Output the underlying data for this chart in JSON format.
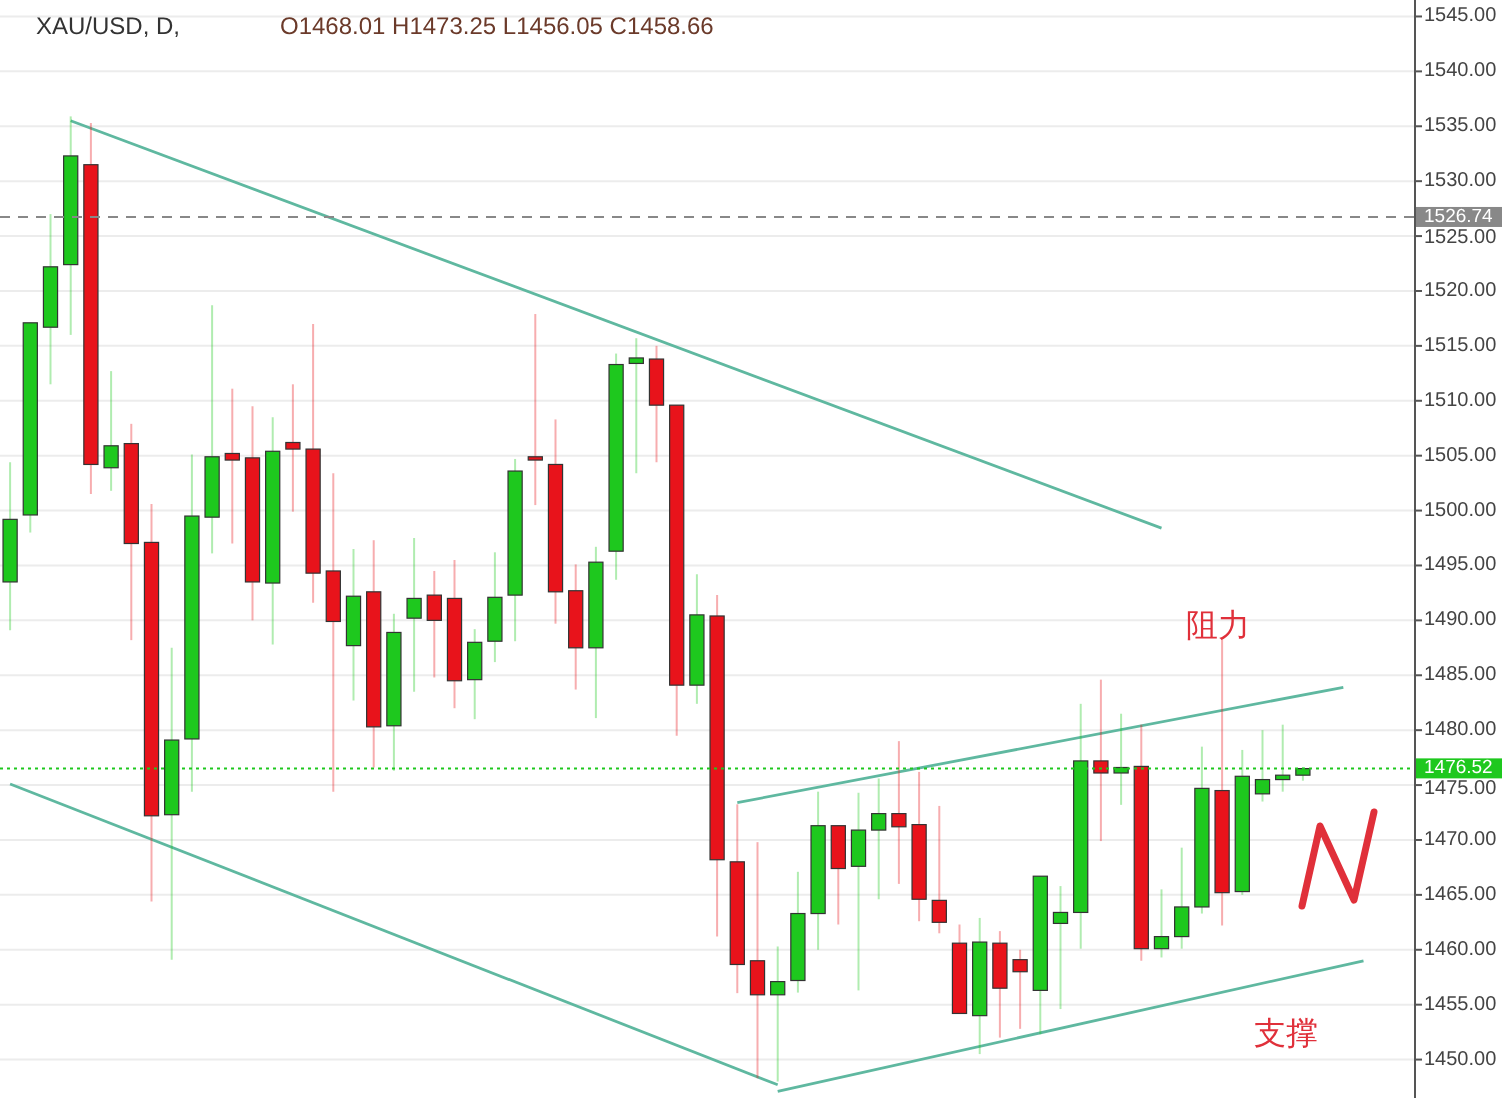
{
  "chart_data": {
    "type": "candlestick",
    "title": "XAU/USD, D,",
    "subtitle": "O1468.01 H1473.25 L1456.05 C1458.66",
    "categories": [
      null,
      null,
      null,
      null,
      null,
      null,
      null,
      null,
      null,
      null,
      null,
      null,
      null,
      null,
      null,
      null,
      null,
      null,
      null,
      null,
      null,
      null,
      null,
      null,
      null,
      null,
      null,
      null,
      null,
      null,
      null,
      null,
      null,
      null,
      null,
      null,
      null,
      null,
      null,
      null,
      null,
      null,
      null,
      null,
      null,
      null,
      null,
      null,
      null,
      null,
      null,
      null,
      null,
      null,
      null,
      null,
      null,
      null,
      null,
      null,
      null,
      null,
      null,
      null,
      null,
      null,
      null,
      null,
      null,
      null
    ],
    "ohlc": [
      [
        1493.5,
        1504.4,
        1489.1,
        1499.2
      ],
      [
        1499.6,
        1517.1,
        1498.0,
        1517.1
      ],
      [
        1516.7,
        1527.0,
        1511.5,
        1522.2
      ],
      [
        1522.4,
        1535.9,
        1516.0,
        1532.3
      ],
      [
        1531.5,
        1535.3,
        1501.5,
        1504.2
      ],
      [
        1503.9,
        1512.7,
        1501.8,
        1505.9
      ],
      [
        1506.1,
        1507.9,
        1488.2,
        1497.0
      ],
      [
        1497.1,
        1500.6,
        1464.4,
        1472.2
      ],
      [
        1472.3,
        1487.5,
        1459.1,
        1479.1
      ],
      [
        1479.2,
        1505.1,
        1474.4,
        1499.5
      ],
      [
        1499.4,
        1518.7,
        1496.1,
        1504.9
      ],
      [
        1505.2,
        1511.1,
        1497.0,
        1504.6
      ],
      [
        1504.8,
        1509.5,
        1490.0,
        1493.5
      ],
      [
        1493.4,
        1508.5,
        1487.8,
        1505.4
      ],
      [
        1506.2,
        1511.5,
        1499.9,
        1505.6
      ],
      [
        1505.6,
        1517.0,
        1491.6,
        1494.3
      ],
      [
        1494.5,
        1503.4,
        1474.4,
        1489.9
      ],
      [
        1487.7,
        1496.5,
        1482.7,
        1492.2
      ],
      [
        1492.6,
        1497.3,
        1476.6,
        1480.3
      ],
      [
        1480.4,
        1490.6,
        1476.3,
        1488.9
      ],
      [
        1490.2,
        1497.5,
        1483.5,
        1492.0
      ],
      [
        1492.3,
        1494.5,
        1484.8,
        1490.0
      ],
      [
        1492.0,
        1495.5,
        1482.0,
        1484.5
      ],
      [
        1484.6,
        1489.2,
        1481.0,
        1488.0
      ],
      [
        1488.1,
        1496.2,
        1486.2,
        1492.1
      ],
      [
        1492.3,
        1504.7,
        1488.1,
        1503.6
      ],
      [
        1504.9,
        1517.9,
        1500.5,
        1504.6
      ],
      [
        1504.2,
        1508.3,
        1489.7,
        1492.6
      ],
      [
        1492.7,
        1495.1,
        1483.7,
        1487.5
      ],
      [
        1487.5,
        1496.7,
        1481.1,
        1495.3
      ],
      [
        1496.3,
        1514.3,
        1493.7,
        1513.3
      ],
      [
        1513.4,
        1515.7,
        1503.4,
        1513.9
      ],
      [
        1513.8,
        1515.0,
        1504.4,
        1509.6
      ],
      [
        1509.6,
        1509.6,
        1479.5,
        1484.1
      ],
      [
        1484.1,
        1494.2,
        1482.4,
        1490.5
      ],
      [
        1490.4,
        1492.3,
        1461.2,
        1468.2
      ],
      [
        1468.01,
        1473.25,
        1456.05,
        1458.66
      ],
      [
        1459.0,
        1469.8,
        1448.3,
        1455.9
      ],
      [
        1455.9,
        1460.3,
        1448.0,
        1457.1
      ],
      [
        1457.2,
        1467.1,
        1456.1,
        1463.3
      ],
      [
        1463.3,
        1474.4,
        1460.0,
        1471.3
      ],
      [
        1471.3,
        1471.3,
        1462.3,
        1467.4
      ],
      [
        1467.6,
        1474.3,
        1456.3,
        1470.9
      ],
      [
        1470.9,
        1475.6,
        1464.6,
        1472.4
      ],
      [
        1472.4,
        1479.0,
        1466.0,
        1471.2
      ],
      [
        1471.4,
        1476.2,
        1462.6,
        1464.6
      ],
      [
        1464.5,
        1473.1,
        1461.5,
        1462.5
      ],
      [
        1460.6,
        1462.3,
        1454.2,
        1454.2
      ],
      [
        1454.0,
        1462.9,
        1450.5,
        1460.7
      ],
      [
        1460.6,
        1461.7,
        1452.0,
        1456.5
      ],
      [
        1459.1,
        1460.0,
        1452.8,
        1458.0
      ],
      [
        1456.3,
        1466.7,
        1452.3,
        1466.7
      ],
      [
        1462.4,
        1465.8,
        1454.6,
        1463.4
      ],
      [
        1463.4,
        1482.4,
        1460.1,
        1477.2
      ],
      [
        1477.2,
        1484.6,
        1469.9,
        1476.1
      ],
      [
        1476.1,
        1481.5,
        1473.2,
        1476.6
      ],
      [
        1476.7,
        1480.5,
        1459.0,
        1460.1
      ],
      [
        1460.1,
        1465.5,
        1459.3,
        1461.2
      ],
      [
        1461.2,
        1469.3,
        1460.1,
        1463.9
      ],
      [
        1463.9,
        1478.5,
        1463.3,
        1474.7
      ],
      [
        1474.5,
        1488.3,
        1462.2,
        1465.2
      ],
      [
        1465.3,
        1478.2,
        1465.0,
        1475.8
      ],
      [
        1474.2,
        1480.0,
        1473.5,
        1475.5
      ],
      [
        1475.5,
        1480.5,
        1474.4,
        1475.9
      ],
      [
        1475.9,
        1476.6,
        1475.4,
        1476.5
      ],
      null,
      null,
      null,
      null,
      null
    ],
    "colors": [
      "#1ec81e",
      "#1ec81e",
      "#1ec81e",
      "#1ec81e",
      "#e8131b",
      "#1ec81e",
      "#e8131b",
      "#e8131b",
      "#1ec81e",
      "#1ec81e",
      "#1ec81e",
      "#e8131b",
      "#e8131b",
      "#1ec81e",
      "#e8131b",
      "#e8131b",
      "#e8131b",
      "#1ec81e",
      "#e8131b",
      "#1ec81e",
      "#1ec81e",
      "#e8131b",
      "#e8131b",
      "#1ec81e",
      "#1ec81e",
      "#1ec81e",
      "#e8131b",
      "#e8131b",
      "#e8131b",
      "#1ec81e",
      "#1ec81e",
      "#1ec81e",
      "#e8131b",
      "#e8131b",
      "#1ec81e",
      "#e8131b",
      "#e8131b",
      "#e8131b",
      "#1ec81e",
      "#1ec81e",
      "#1ec81e",
      "#e8131b",
      "#1ec81e",
      "#1ec81e",
      "#e8131b",
      "#e8131b",
      "#e8131b",
      "#e8131b",
      "#1ec81e",
      "#e8131b",
      "#e8131b",
      "#1ec81e",
      "#1ec81e",
      "#1ec81e",
      "#e8131b",
      "#1ec81e",
      "#e8131b",
      "#1ec81e",
      "#1ec81e",
      "#1ec81e",
      "#e8131b",
      "#1ec81e",
      "#1ec81e",
      "#1ec81e",
      "#1ec81e",
      null,
      null,
      null,
      null,
      null
    ],
    "series": [
      {
        "type": "line",
        "color": "#5fb8a0",
        "values": [
          null,
          null,
          null,
          1535.5,
          null,
          null,
          null,
          null,
          null,
          null,
          null,
          null,
          null,
          null,
          null,
          null,
          null,
          null,
          null,
          null,
          null,
          null,
          null,
          null,
          null,
          null,
          null,
          null,
          null,
          null,
          null,
          null,
          null,
          null,
          null,
          null,
          null,
          null,
          null,
          null,
          null,
          null,
          null,
          null,
          null,
          null,
          null,
          null,
          null,
          null,
          null,
          null,
          null,
          null,
          null,
          null,
          null,
          1498.4,
          null,
          null,
          null,
          null,
          null,
          null,
          null,
          null,
          null,
          null,
          null,
          null
        ]
      },
      {
        "type": "line",
        "color": "#5fb8a0",
        "values": [
          1475.1,
          null,
          null,
          null,
          null,
          null,
          null,
          null,
          null,
          null,
          null,
          null,
          null,
          null,
          null,
          null,
          null,
          null,
          null,
          null,
          null,
          null,
          null,
          null,
          null,
          null,
          null,
          null,
          null,
          null,
          null,
          null,
          null,
          null,
          null,
          null,
          null,
          null,
          1447.7,
          null,
          null,
          null,
          null,
          null,
          null,
          null,
          null,
          null,
          null,
          null,
          null,
          null,
          null,
          null,
          null,
          null,
          null,
          null,
          null,
          null,
          null,
          null,
          null,
          null,
          null,
          null,
          null,
          null,
          null,
          null
        ]
      },
      {
        "type": "line",
        "color": "#5fb8a0",
        "values": [
          null,
          null,
          null,
          null,
          null,
          null,
          null,
          null,
          null,
          null,
          null,
          null,
          null,
          null,
          null,
          null,
          null,
          null,
          null,
          null,
          null,
          null,
          null,
          null,
          null,
          null,
          null,
          null,
          null,
          null,
          null,
          null,
          null,
          null,
          null,
          null,
          1473.4,
          null,
          null,
          null,
          null,
          null,
          null,
          null,
          null,
          null,
          null,
          null,
          null,
          null,
          null,
          null,
          null,
          null,
          null,
          null,
          null,
          null,
          null,
          null,
          null,
          null,
          null,
          null,
          null,
          null,
          1483.9,
          null,
          null,
          null
        ]
      },
      {
        "type": "line",
        "color": "#5fb8a0",
        "values": [
          null,
          null,
          null,
          null,
          null,
          null,
          null,
          null,
          null,
          null,
          null,
          null,
          null,
          null,
          null,
          null,
          null,
          null,
          null,
          null,
          null,
          null,
          null,
          null,
          null,
          null,
          null,
          null,
          null,
          null,
          null,
          null,
          null,
          null,
          null,
          null,
          null,
          null,
          1447.1,
          null,
          null,
          null,
          null,
          null,
          null,
          null,
          null,
          null,
          null,
          null,
          null,
          null,
          null,
          null,
          null,
          null,
          null,
          null,
          null,
          null,
          null,
          null,
          null,
          null,
          null,
          null,
          null,
          1459.0,
          null,
          null
        ]
      }
    ],
    "ylim": [
      1446.5,
      1546.5
    ],
    "yticks": [
      {
        "value": 1450,
        "label": "1450.00"
      },
      {
        "value": 1455,
        "label": "1455.00"
      },
      {
        "value": 1460,
        "label": "1460.00"
      },
      {
        "value": 1465,
        "label": "1465.00"
      },
      {
        "value": 1470,
        "label": "1470.00"
      },
      {
        "value": 1475,
        "label": "1475.00"
      },
      {
        "value": 1480,
        "label": "1480.00"
      },
      {
        "value": 1485,
        "label": "1485.00"
      },
      {
        "value": 1490,
        "label": "1490.00"
      },
      {
        "value": 1495,
        "label": "1495.00"
      },
      {
        "value": 1500,
        "label": "1500.00"
      },
      {
        "value": 1505,
        "label": "1505.00"
      },
      {
        "value": 1510,
        "label": "1510.00"
      },
      {
        "value": 1515,
        "label": "1515.00"
      },
      {
        "value": 1520,
        "label": "1520.00"
      },
      {
        "value": 1525,
        "label": "1525.00"
      },
      {
        "value": 1530,
        "label": "1530.00"
      },
      {
        "value": 1535,
        "label": "1535.00"
      },
      {
        "value": 1540,
        "label": "1540.00"
      },
      {
        "value": 1545,
        "label": "1545.00"
      }
    ],
    "ref_lines": [
      {
        "axis": "y",
        "value": 1526.74,
        "label": "1526.74",
        "color": "#888888",
        "line_style": "dashed"
      },
      {
        "axis": "y",
        "value": 1476.52,
        "label": "1476.52",
        "color": "#1ec81e",
        "line_style": "dotted"
      }
    ],
    "annotations": [
      "阻力",
      "支撑"
    ],
    "grid": "y"
  }
}
